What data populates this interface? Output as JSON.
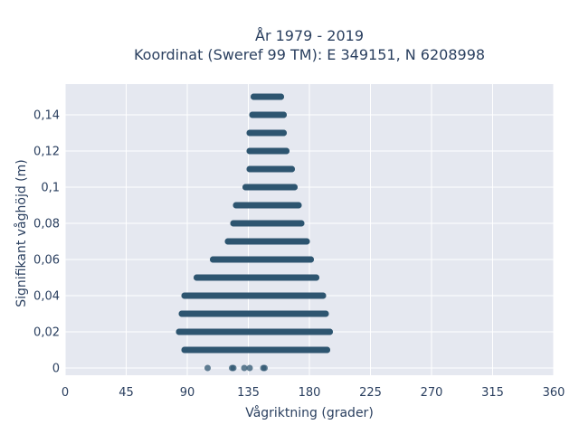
{
  "chart_data": {
    "type": "scatter",
    "title_line1": "År 1979 - 2019",
    "title_line2": "Koordinat (Sweref 99 TM): E 349151, N 6208998",
    "xlabel": "Vågriktning (grader)",
    "ylabel": "Signifikant våghöjd (m)",
    "xlim": [
      0,
      360
    ],
    "ylim": [
      -0.004,
      0.157
    ],
    "xticks": [
      0,
      45,
      90,
      135,
      180,
      225,
      270,
      315,
      360
    ],
    "xtick_labels": [
      "0",
      "45",
      "90",
      "135",
      "180",
      "225",
      "270",
      "315",
      "360"
    ],
    "yticks": [
      0,
      0.02,
      0.04,
      0.06,
      0.08,
      0.1,
      0.12,
      0.14
    ],
    "ytick_labels": [
      "0",
      "0,02",
      "0,04",
      "0,06",
      "0,08",
      "0,1",
      "0,12",
      "0,14"
    ],
    "grid": true,
    "marker_color": "#2e5570",
    "plot_bg": "#e5e8f0",
    "bands": [
      {
        "y": 0.15,
        "x_min": 139,
        "x_max": 159
      },
      {
        "y": 0.14,
        "x_min": 138,
        "x_max": 161
      },
      {
        "y": 0.13,
        "x_min": 136,
        "x_max": 161
      },
      {
        "y": 0.12,
        "x_min": 136,
        "x_max": 163
      },
      {
        "y": 0.11,
        "x_min": 136,
        "x_max": 167
      },
      {
        "y": 0.1,
        "x_min": 133,
        "x_max": 169
      },
      {
        "y": 0.09,
        "x_min": 126,
        "x_max": 172
      },
      {
        "y": 0.08,
        "x_min": 124,
        "x_max": 174
      },
      {
        "y": 0.07,
        "x_min": 120,
        "x_max": 178
      },
      {
        "y": 0.06,
        "x_min": 109,
        "x_max": 181
      },
      {
        "y": 0.05,
        "x_min": 97,
        "x_max": 185
      },
      {
        "y": 0.04,
        "x_min": 88,
        "x_max": 190
      },
      {
        "y": 0.03,
        "x_min": 86,
        "x_max": 192
      },
      {
        "y": 0.02,
        "x_min": 84,
        "x_max": 195
      },
      {
        "y": 0.01,
        "x_min": 88,
        "x_max": 193
      }
    ],
    "points": [
      {
        "x": 105,
        "y": 0
      },
      {
        "x": 123,
        "y": 0
      },
      {
        "x": 124,
        "y": 0
      },
      {
        "x": 132,
        "y": 0
      },
      {
        "x": 136,
        "y": 0
      },
      {
        "x": 146,
        "y": 0
      },
      {
        "x": 147,
        "y": 0
      }
    ]
  }
}
